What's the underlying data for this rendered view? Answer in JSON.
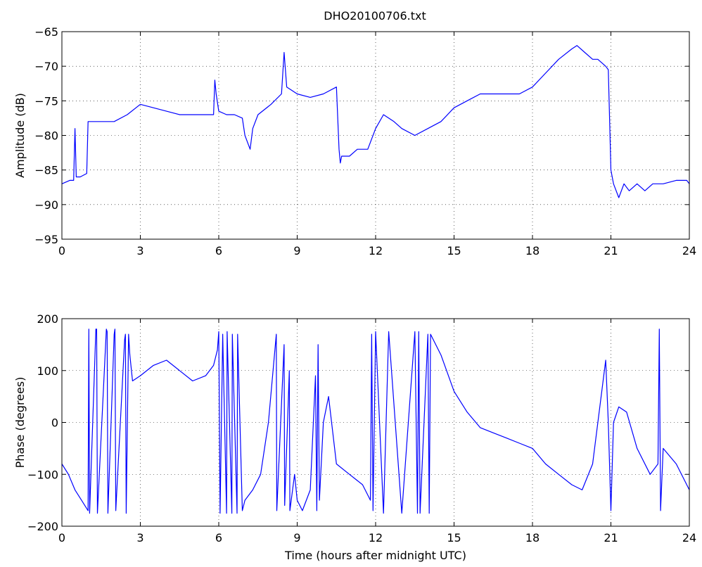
{
  "figure_title": "DHO20100706.txt",
  "chart_data": [
    {
      "type": "line",
      "title": "DHO20100706.txt",
      "xlabel": "",
      "ylabel": "Amplitude (dB)",
      "xlim": [
        0,
        24
      ],
      "ylim": [
        -95,
        -65
      ],
      "xticks": [
        0,
        3,
        6,
        9,
        12,
        15,
        18,
        21,
        24
      ],
      "yticks": [
        -95,
        -90,
        -85,
        -80,
        -75,
        -70,
        -65
      ],
      "grid": true,
      "color": "#0000ff",
      "series": [
        {
          "x": [
            0,
            0.3,
            0.45,
            0.5,
            0.55,
            0.7,
            0.95,
            1.0,
            1.05,
            1.5,
            2.0,
            2.5,
            3.0,
            3.5,
            4.0,
            4.5,
            5.0,
            5.5,
            5.8,
            5.85,
            5.9,
            6.0,
            6.3,
            6.6,
            6.9,
            7.0,
            7.2,
            7.3,
            7.5,
            8.0,
            8.4,
            8.5,
            8.6,
            9.0,
            9.5,
            10.0,
            10.5,
            10.6,
            10.65,
            10.7,
            11.0,
            11.3,
            11.7,
            12.0,
            12.3,
            12.7,
            13.0,
            13.5,
            14.0,
            14.5,
            15.0,
            15.5,
            16.0,
            16.5,
            17.0,
            17.5,
            18.0,
            18.5,
            19.0,
            19.5,
            19.7,
            20.0,
            20.3,
            20.5,
            20.8,
            20.9,
            21.0,
            21.1,
            21.3,
            21.5,
            21.7,
            22.0,
            22.3,
            22.6,
            23.0,
            23.5,
            23.9,
            24.0
          ],
          "values": [
            -87,
            -86.5,
            -86.5,
            -79,
            -86,
            -86,
            -85.5,
            -78,
            -78,
            -78,
            -78,
            -77,
            -75.5,
            -76,
            -76.5,
            -77,
            -77,
            -77,
            -77,
            -72,
            -74,
            -76.5,
            -77,
            -77,
            -77.5,
            -80,
            -82,
            -79,
            -77,
            -75.5,
            -74,
            -68,
            -73,
            -74,
            -74.5,
            -74,
            -73,
            -82,
            -84,
            -83,
            -83,
            -82,
            -82,
            -79,
            -77,
            -78,
            -79,
            -80,
            -79,
            -78,
            -76,
            -75,
            -74,
            -74,
            -74,
            -74,
            -73,
            -71,
            -69,
            -67.5,
            -67,
            -68,
            -69,
            -69,
            -70,
            -70.5,
            -85,
            -87,
            -89,
            -87,
            -88,
            -87,
            -88,
            -87,
            -87,
            -86.5,
            -86.5,
            -87
          ]
        }
      ]
    },
    {
      "type": "line",
      "title": "",
      "xlabel": "Time (hours after midnight UTC)",
      "ylabel": "Phase (degrees)",
      "xlim": [
        0,
        24
      ],
      "ylim": [
        -200,
        200
      ],
      "xticks": [
        0,
        3,
        6,
        9,
        12,
        15,
        18,
        21,
        24
      ],
      "yticks": [
        -200,
        -100,
        0,
        100,
        200
      ],
      "grid": true,
      "color": "#0000ff",
      "series": [
        {
          "x": [
            0,
            0.25,
            0.5,
            0.75,
            1.0,
            1.03,
            1.06,
            1.3,
            1.33,
            1.36,
            1.7,
            1.73,
            1.76,
            2.0,
            2.03,
            2.06,
            2.4,
            2.43,
            2.46,
            2.55,
            2.6,
            2.7,
            3.0,
            3.5,
            4.0,
            4.5,
            5.0,
            5.5,
            5.8,
            5.95,
            6.0,
            6.05,
            6.15,
            6.3,
            6.32,
            6.5,
            6.52,
            6.7,
            6.72,
            6.9,
            7.0,
            7.3,
            7.6,
            7.9,
            8.2,
            8.22,
            8.5,
            8.52,
            8.7,
            8.72,
            8.9,
            9.0,
            9.2,
            9.5,
            9.7,
            9.75,
            9.8,
            9.85,
            10.0,
            10.2,
            10.5,
            11.0,
            11.5,
            11.8,
            11.85,
            11.9,
            12.0,
            12.3,
            12.5,
            13.0,
            13.5,
            13.6,
            13.65,
            13.7,
            14.0,
            14.05,
            14.1,
            14.5,
            15.0,
            15.5,
            16.0,
            16.5,
            17.0,
            17.5,
            18.0,
            18.5,
            19.0,
            19.5,
            19.9,
            20.3,
            20.8,
            20.9,
            21.0,
            21.1,
            21.3,
            21.6,
            22.0,
            22.5,
            22.8,
            22.85,
            22.9,
            23.0,
            23.5,
            24.0
          ],
          "values": [
            -80,
            -100,
            -130,
            -150,
            -170,
            180,
            -175,
            180,
            180,
            -175,
            180,
            175,
            -175,
            170,
            180,
            -170,
            160,
            170,
            -175,
            170,
            130,
            80,
            90,
            110,
            120,
            100,
            80,
            90,
            110,
            140,
            175,
            -175,
            170,
            -175,
            175,
            -175,
            170,
            -175,
            170,
            -170,
            -150,
            -130,
            -100,
            0,
            170,
            -170,
            150,
            -160,
            100,
            -170,
            -100,
            -150,
            -170,
            -130,
            90,
            -170,
            150,
            -150,
            0,
            50,
            -80,
            -100,
            -120,
            -150,
            170,
            -170,
            175,
            -175,
            175,
            -175,
            175,
            -175,
            175,
            -175,
            170,
            -175,
            170,
            130,
            60,
            20,
            -10,
            -20,
            -30,
            -40,
            -50,
            -80,
            -100,
            -120,
            -130,
            -80,
            120,
            0,
            -170,
            0,
            30,
            20,
            -50,
            -100,
            -80,
            180,
            -170,
            -50,
            -80,
            -130
          ]
        }
      ]
    }
  ]
}
